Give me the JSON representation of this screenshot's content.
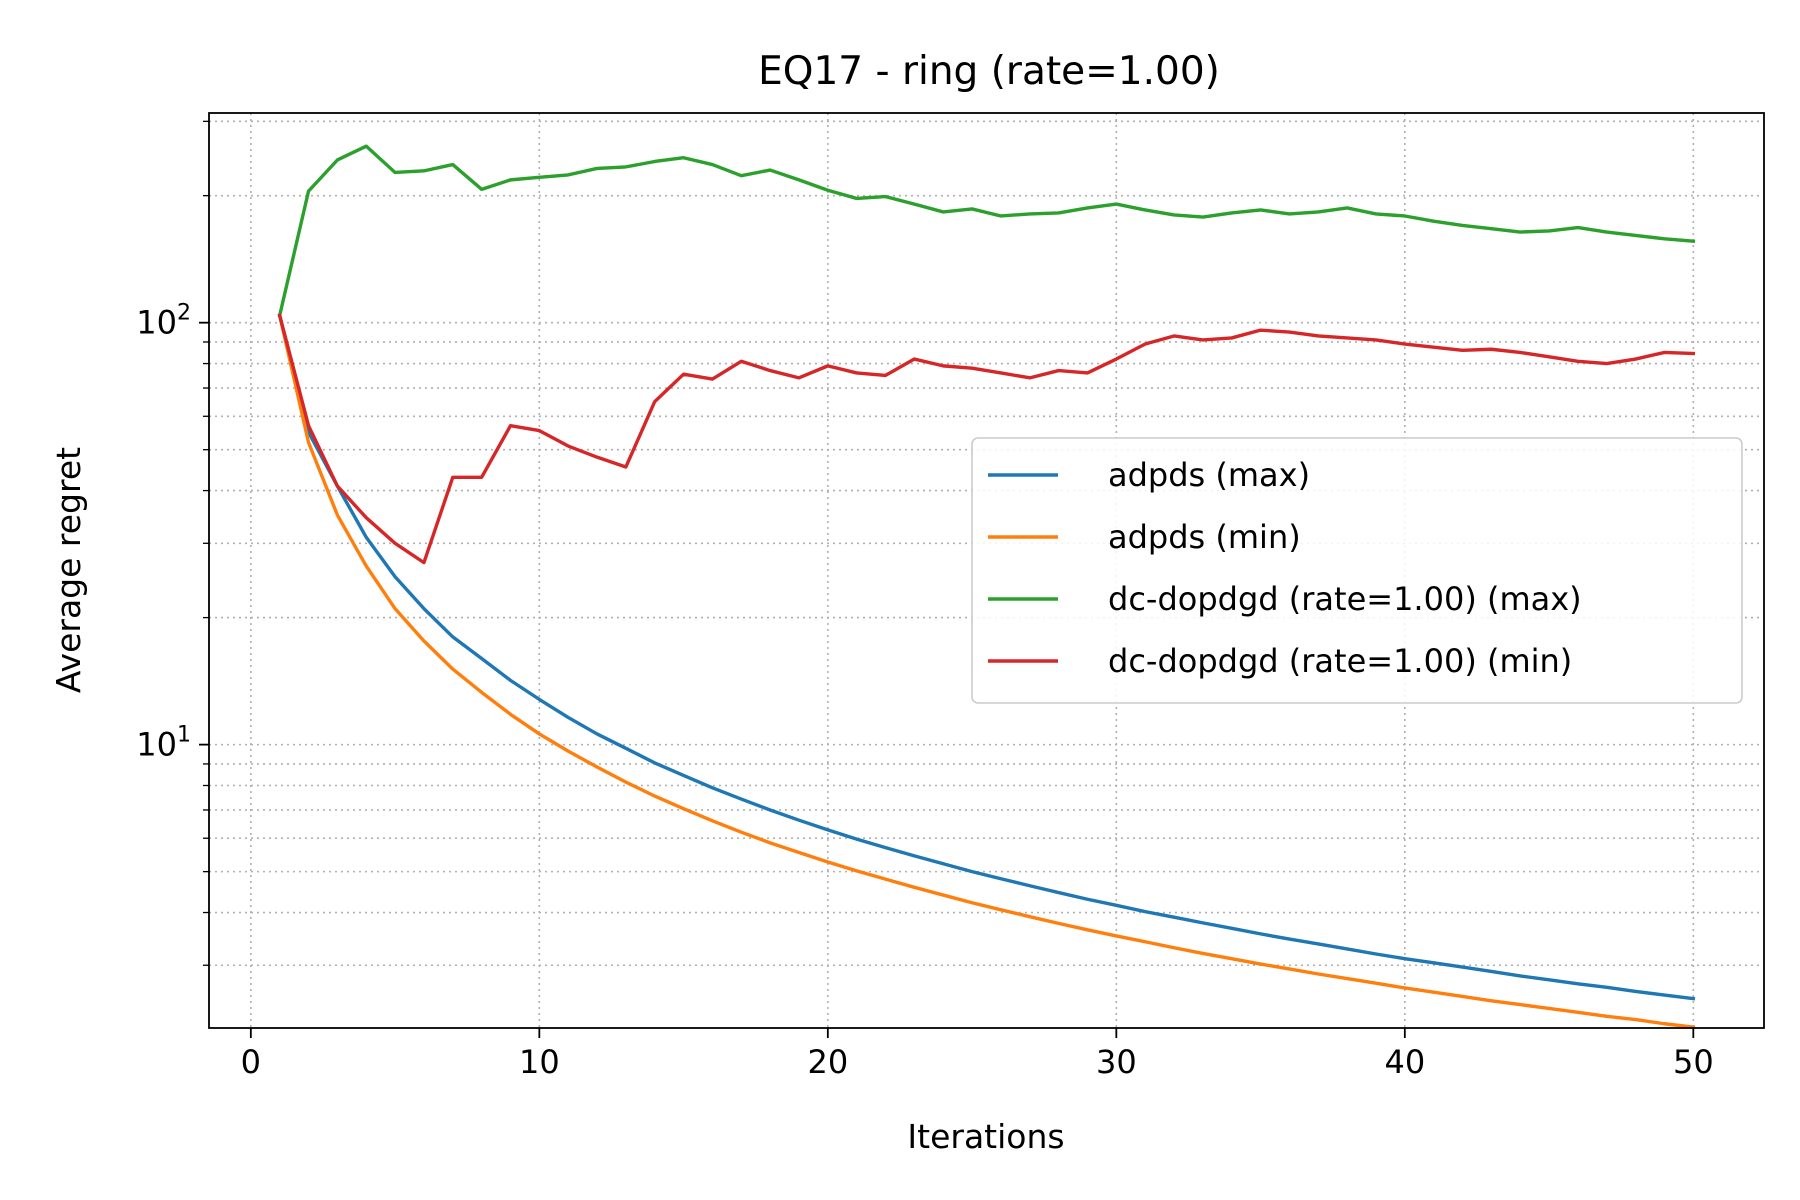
{
  "chart_data": {
    "type": "line",
    "title": "EQ17 - ring (rate=1.00)",
    "xlabel": "Iterations",
    "ylabel": "Average regret",
    "yscale": "log",
    "xlim": [
      -1.45,
      52.45
    ],
    "ylim": [
      2.13,
      314
    ],
    "x_ticks": [
      0,
      10,
      20,
      30,
      40,
      50
    ],
    "x_tick_labels": [
      "0",
      "10",
      "20",
      "30",
      "40",
      "50"
    ],
    "y_major_ticks": [
      10,
      100
    ],
    "y_tick_labels": [
      {
        "base": "10",
        "exp": "1"
      },
      {
        "base": "10",
        "exp": "2"
      }
    ],
    "y_minor_ticks": [
      3,
      4,
      5,
      6,
      7,
      8,
      9,
      20,
      30,
      40,
      50,
      60,
      70,
      80,
      90,
      200,
      300
    ],
    "grid": true,
    "legend_position": "center-right",
    "x": [
      1,
      2,
      3,
      4,
      5,
      6,
      7,
      8,
      9,
      10,
      11,
      12,
      13,
      14,
      15,
      16,
      17,
      18,
      19,
      20,
      21,
      22,
      23,
      24,
      25,
      26,
      27,
      28,
      29,
      30,
      31,
      32,
      33,
      34,
      35,
      36,
      37,
      38,
      39,
      40,
      41,
      42,
      43,
      44,
      45,
      46,
      47,
      48,
      49,
      50
    ],
    "series": [
      {
        "name": "adpds (max)",
        "color": "#1f77b4",
        "values": [
          104,
          55,
          41,
          31,
          25,
          21,
          18,
          16,
          14.2,
          12.8,
          11.6,
          10.6,
          9.8,
          9.05,
          8.45,
          7.9,
          7.43,
          7.0,
          6.62,
          6.28,
          5.97,
          5.7,
          5.45,
          5.22,
          5.0,
          4.81,
          4.63,
          4.46,
          4.3,
          4.16,
          4.02,
          3.9,
          3.78,
          3.67,
          3.56,
          3.46,
          3.37,
          3.28,
          3.19,
          3.11,
          3.04,
          2.97,
          2.9,
          2.83,
          2.77,
          2.71,
          2.66,
          2.6,
          2.55,
          2.5
        ]
      },
      {
        "name": "adpds (min)",
        "color": "#ff7f0e",
        "values": [
          104,
          52,
          35,
          26.5,
          21,
          17.6,
          15.1,
          13.3,
          11.8,
          10.6,
          9.65,
          8.85,
          8.15,
          7.55,
          7.05,
          6.6,
          6.2,
          5.85,
          5.55,
          5.27,
          5.02,
          4.8,
          4.59,
          4.4,
          4.22,
          4.06,
          3.91,
          3.77,
          3.64,
          3.52,
          3.41,
          3.3,
          3.2,
          3.11,
          3.02,
          2.94,
          2.86,
          2.79,
          2.72,
          2.65,
          2.59,
          2.53,
          2.47,
          2.42,
          2.37,
          2.32,
          2.27,
          2.23,
          2.18,
          2.14
        ]
      },
      {
        "name": "dc-dopdgd (rate=1.00) (max)",
        "color": "#2ca02c",
        "values": [
          104,
          205,
          243,
          262,
          227,
          229,
          237,
          207,
          218,
          221,
          224,
          232,
          234,
          241,
          246,
          237,
          223,
          230,
          218,
          206,
          197,
          199,
          191,
          183,
          186,
          179,
          181,
          182,
          187,
          191,
          185,
          180,
          178,
          182,
          185,
          181,
          183,
          187,
          181,
          179,
          174,
          170,
          167,
          164,
          165,
          168,
          164,
          161,
          158,
          156
        ]
      },
      {
        "name": "dc-dopdgd (rate=1.00) (min)",
        "color": "#d62728",
        "values": [
          104,
          57,
          41,
          34.5,
          30,
          27,
          43,
          43,
          57,
          55.5,
          51,
          48,
          45.5,
          65,
          75.5,
          73.5,
          81,
          77,
          74,
          79,
          76,
          75,
          82,
          79,
          78,
          76,
          74,
          77,
          76,
          82,
          89,
          93,
          91,
          92,
          96,
          95,
          93,
          92,
          91,
          89,
          87.5,
          86,
          86.5,
          85,
          83,
          81,
          80,
          82,
          85,
          84.5
        ]
      }
    ]
  }
}
